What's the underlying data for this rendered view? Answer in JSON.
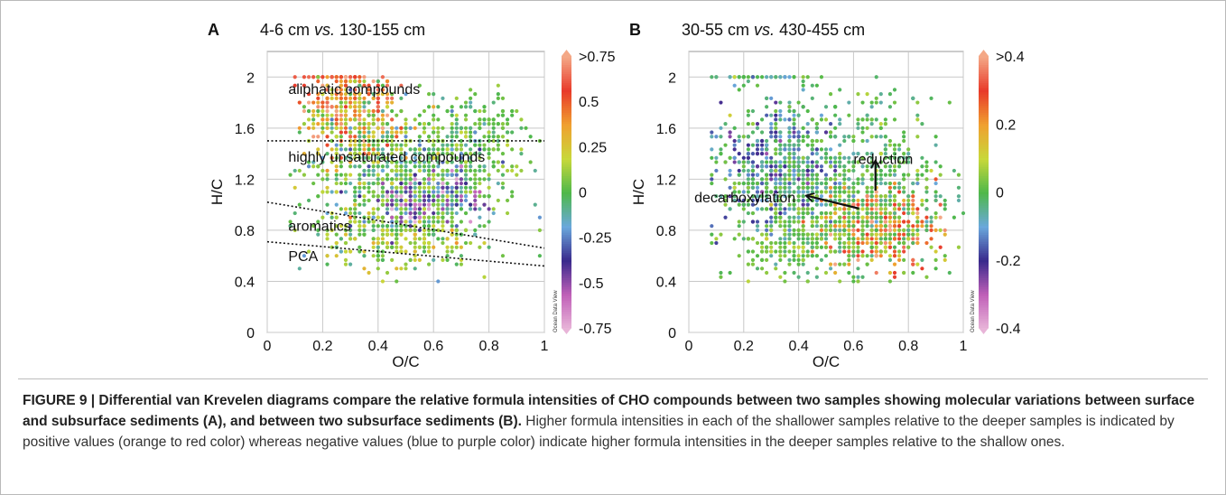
{
  "chart_data": [
    {
      "type": "scatter",
      "panel_label": "A",
      "title_prefix": "4-6 cm ",
      "title_vs": "vs.",
      "title_suffix": " 130-155 cm",
      "xlabel": "O/C",
      "ylabel": "H/C",
      "xlim": [
        0,
        1
      ],
      "ylim": [
        0,
        2.2
      ],
      "x_ticks": [
        "0",
        "0.2",
        "0.4",
        "0.6",
        "0.8",
        "1"
      ],
      "y_ticks": [
        "0",
        "0.4",
        "0.8",
        "1.2",
        "1.6",
        "2"
      ],
      "grid": true,
      "colorbar": {
        "labels": [
          ">0.75",
          "0.5",
          "0.25",
          "0",
          "-0.25",
          "-0.5",
          "-0.75"
        ],
        "range": [
          -0.75,
          0.75
        ],
        "watermark": "Ocean Data View"
      },
      "annotations": [
        {
          "text": "aliphatic compounds",
          "x": 0.05,
          "y": 1.91
        },
        {
          "text": "highly unsaturated compounds",
          "x": 0.05,
          "y": 1.38
        },
        {
          "text": "aromatics",
          "x": 0.05,
          "y": 0.84
        },
        {
          "text": "PCA",
          "x": 0.05,
          "y": 0.6
        }
      ],
      "boundary_lines": [
        {
          "x": [
            0,
            1
          ],
          "y": [
            1.5,
            1.5
          ]
        },
        {
          "x": [
            0,
            1
          ],
          "y": [
            1.02,
            0.66
          ]
        },
        {
          "x": [
            0,
            1
          ],
          "y": [
            0.71,
            0.52
          ]
        }
      ],
      "clusters": [
        {
          "cx": 0.3,
          "cy": 1.82,
          "sx": 0.09,
          "sy": 0.16,
          "n": 260,
          "v": 0.45,
          "vs": 0.22
        },
        {
          "cx": 0.5,
          "cy": 1.2,
          "sx": 0.17,
          "sy": 0.28,
          "n": 950,
          "v": 0.0,
          "vs": 0.12
        },
        {
          "cx": 0.52,
          "cy": 0.98,
          "sx": 0.05,
          "sy": 0.12,
          "n": 120,
          "v": -0.45,
          "vs": 0.2
        },
        {
          "cx": 0.68,
          "cy": 1.12,
          "sx": 0.05,
          "sy": 0.12,
          "n": 70,
          "v": -0.35,
          "vs": 0.2
        },
        {
          "cx": 0.45,
          "cy": 0.75,
          "sx": 0.15,
          "sy": 0.12,
          "n": 220,
          "v": 0.12,
          "vs": 0.1
        },
        {
          "cx": 0.33,
          "cy": 1.55,
          "sx": 0.1,
          "sy": 0.12,
          "n": 160,
          "v": 0.25,
          "vs": 0.2
        },
        {
          "cx": 0.25,
          "cy": 1.99,
          "sx": 0.06,
          "sy": 0.0,
          "n": 30,
          "v": 0.55,
          "vs": 0.15
        },
        {
          "cx": 0.78,
          "cy": 1.55,
          "sx": 0.08,
          "sy": 0.2,
          "n": 140,
          "v": 0.02,
          "vs": 0.06
        }
      ]
    },
    {
      "type": "scatter",
      "panel_label": "B",
      "title_prefix": "30-55 cm ",
      "title_vs": "vs.",
      "title_suffix": " 430-455 cm",
      "xlabel": "O/C",
      "ylabel": "H/C",
      "xlim": [
        0,
        1
      ],
      "ylim": [
        0,
        2.2
      ],
      "x_ticks": [
        "0",
        "0.2",
        "0.4",
        "0.6",
        "0.8",
        "1"
      ],
      "y_ticks": [
        "0",
        "0.4",
        "0.8",
        "1.2",
        "1.6",
        "2"
      ],
      "grid": true,
      "colorbar": {
        "labels": [
          ">0.4",
          "0.2",
          "0",
          "-0.2",
          "-0.4"
        ],
        "range": [
          -0.4,
          0.4
        ],
        "watermark": "Ocean Data View"
      },
      "annotations": [
        {
          "text": "reduction",
          "x": 0.6,
          "y": 1.36
        },
        {
          "text": "decarboxylation",
          "x": 0.02,
          "y": 1.06
        }
      ],
      "arrows": [
        {
          "from": [
            0.68,
            1.11
          ],
          "to": [
            0.68,
            1.34
          ]
        },
        {
          "from": [
            0.62,
            0.97
          ],
          "to": [
            0.43,
            1.07
          ]
        }
      ],
      "clusters": [
        {
          "cx": 0.33,
          "cy": 1.28,
          "sx": 0.1,
          "sy": 0.22,
          "n": 520,
          "v": -0.14,
          "vs": 0.06
        },
        {
          "cx": 0.68,
          "cy": 0.83,
          "sx": 0.11,
          "sy": 0.16,
          "n": 420,
          "v": 0.24,
          "vs": 0.1
        },
        {
          "cx": 0.52,
          "cy": 1.15,
          "sx": 0.22,
          "sy": 0.38,
          "n": 900,
          "v": 0.0,
          "vs": 0.04
        },
        {
          "cx": 0.4,
          "cy": 0.7,
          "sx": 0.12,
          "sy": 0.14,
          "n": 160,
          "v": 0.03,
          "vs": 0.04
        },
        {
          "cx": 0.25,
          "cy": 1.99,
          "sx": 0.1,
          "sy": 0.0,
          "n": 40,
          "v": -0.02,
          "vs": 0.05
        }
      ]
    }
  ],
  "caption": {
    "bold_text": "FIGURE 9 | Differential van Krevelen diagrams compare the relative formula intensities of CHO compounds between two samples showing molecular variations between surface and subsurface sediments (A), and between two subsurface sediments (B).",
    "body_text": " Higher formula intensities in each of the shallower samples relative to the deeper samples is indicated by positive values (orange to red color) whereas negative values (blue to purple color) indicate higher formula intensities in the deeper samples relative to the shallow ones."
  },
  "colors": {
    "scale": [
      "#e8b4d8",
      "#c060b8",
      "#3a2a8c",
      "#6aa8dc",
      "#4fb84a",
      "#c8d83a",
      "#f0a030",
      "#e83a2a",
      "#f4a886"
    ]
  }
}
